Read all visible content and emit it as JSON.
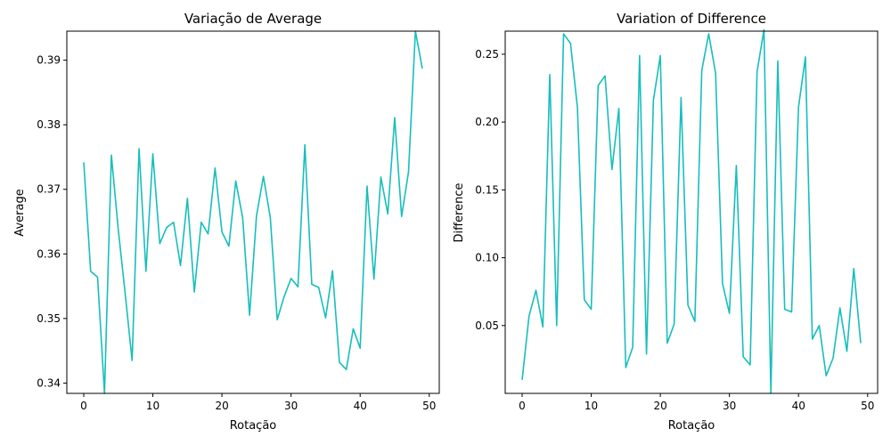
{
  "chart_data": [
    {
      "type": "line",
      "title": "Variação de Average",
      "xlabel": "Rotação",
      "ylabel": "Average",
      "xlim": [
        -2.45,
        51.45
      ],
      "ylim": [
        0.3384,
        0.3945
      ],
      "xticks": [
        0,
        10,
        20,
        30,
        40,
        50
      ],
      "yticks": [
        0.34,
        0.35,
        0.36,
        0.37,
        0.38,
        0.39
      ],
      "grid": false,
      "color": "#17BEBB",
      "x": [
        0,
        1,
        2,
        3,
        4,
        5,
        6,
        7,
        8,
        9,
        10,
        11,
        12,
        13,
        14,
        15,
        16,
        17,
        18,
        19,
        20,
        21,
        22,
        23,
        24,
        25,
        26,
        27,
        28,
        29,
        30,
        31,
        32,
        33,
        34,
        35,
        36,
        37,
        38,
        39,
        40,
        41,
        42,
        43,
        44,
        45,
        46,
        47,
        48,
        49
      ],
      "values": [
        0.3742,
        0.3573,
        0.3564,
        0.3384,
        0.3753,
        0.3637,
        0.3538,
        0.3435,
        0.3763,
        0.3573,
        0.3755,
        0.3616,
        0.3641,
        0.3649,
        0.3582,
        0.3686,
        0.3541,
        0.3649,
        0.3631,
        0.3733,
        0.3634,
        0.3612,
        0.3713,
        0.3656,
        0.3505,
        0.3659,
        0.372,
        0.3656,
        0.3498,
        0.3534,
        0.3562,
        0.3549,
        0.3769,
        0.3553,
        0.3548,
        0.3501,
        0.3574,
        0.3432,
        0.3421,
        0.3484,
        0.3454,
        0.3705,
        0.3561,
        0.3719,
        0.3662,
        0.3811,
        0.3658,
        0.3727,
        0.3945,
        0.3887
      ]
    },
    {
      "type": "line",
      "title": "Variation of Difference",
      "xlabel": "Rotação",
      "ylabel": "Difference",
      "xlim": [
        -2.45,
        51.45
      ],
      "ylim": [
        0.0,
        0.267
      ],
      "xticks": [
        0,
        10,
        20,
        30,
        40,
        50
      ],
      "yticks": [
        0.05,
        0.1,
        0.15,
        0.2,
        0.25
      ],
      "ytick_labels": [
        "0.05",
        "0.10",
        "0.15",
        "0.20",
        "0.25"
      ],
      "grid": false,
      "color": "#17BEBB",
      "x": [
        0,
        1,
        2,
        3,
        4,
        5,
        6,
        7,
        8,
        9,
        10,
        11,
        12,
        13,
        14,
        15,
        16,
        17,
        18,
        19,
        20,
        21,
        22,
        23,
        24,
        25,
        26,
        27,
        28,
        29,
        30,
        31,
        32,
        33,
        34,
        35,
        36,
        37,
        38,
        39,
        40,
        41,
        42,
        43,
        44,
        45,
        46,
        47,
        48,
        49
      ],
      "values": [
        0.01,
        0.057,
        0.076,
        0.049,
        0.235,
        0.05,
        0.265,
        0.258,
        0.211,
        0.069,
        0.062,
        0.227,
        0.234,
        0.165,
        0.21,
        0.019,
        0.034,
        0.249,
        0.029,
        0.216,
        0.249,
        0.037,
        0.051,
        0.218,
        0.065,
        0.053,
        0.238,
        0.265,
        0.236,
        0.081,
        0.059,
        0.168,
        0.027,
        0.021,
        0.237,
        0.268,
        0.0,
        0.245,
        0.062,
        0.06,
        0.211,
        0.248,
        0.04,
        0.05,
        0.013,
        0.026,
        0.063,
        0.031,
        0.092,
        0.037
      ]
    }
  ]
}
